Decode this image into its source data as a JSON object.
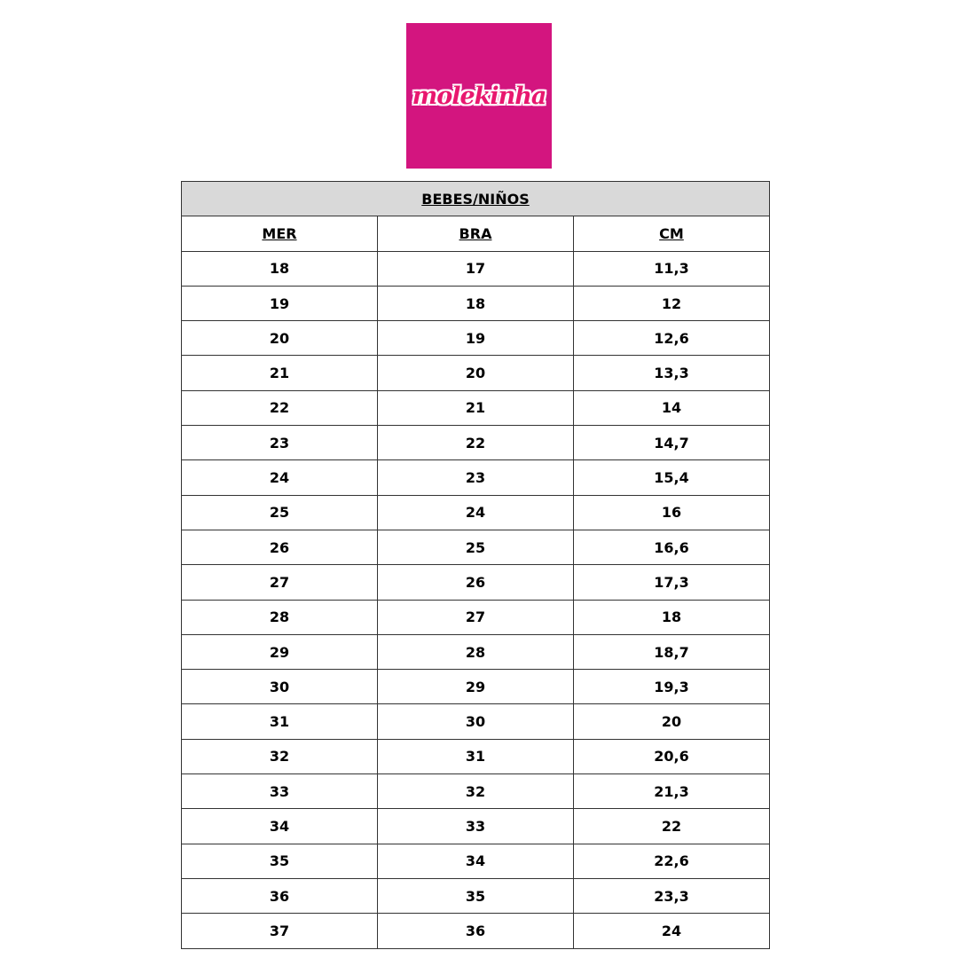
{
  "logo": {
    "text": "molekinha",
    "color": "#d3157f"
  },
  "table": {
    "title": "BEBES/NIÑOS",
    "columns": [
      "MER",
      "BRA",
      "CM"
    ],
    "rows": [
      [
        "18",
        "17",
        "11,3"
      ],
      [
        "19",
        "18",
        "12"
      ],
      [
        "20",
        "19",
        "12,6"
      ],
      [
        "21",
        "20",
        "13,3"
      ],
      [
        "22",
        "21",
        "14"
      ],
      [
        "23",
        "22",
        "14,7"
      ],
      [
        "24",
        "23",
        "15,4"
      ],
      [
        "25",
        "24",
        "16"
      ],
      [
        "26",
        "25",
        "16,6"
      ],
      [
        "27",
        "26",
        "17,3"
      ],
      [
        "28",
        "27",
        "18"
      ],
      [
        "29",
        "28",
        "18,7"
      ],
      [
        "30",
        "29",
        "19,3"
      ],
      [
        "31",
        "30",
        "20"
      ],
      [
        "32",
        "31",
        "20,6"
      ],
      [
        "33",
        "32",
        "21,3"
      ],
      [
        "34",
        "33",
        "22"
      ],
      [
        "35",
        "34",
        "22,6"
      ],
      [
        "36",
        "35",
        "23,3"
      ],
      [
        "37",
        "36",
        "24"
      ]
    ]
  }
}
